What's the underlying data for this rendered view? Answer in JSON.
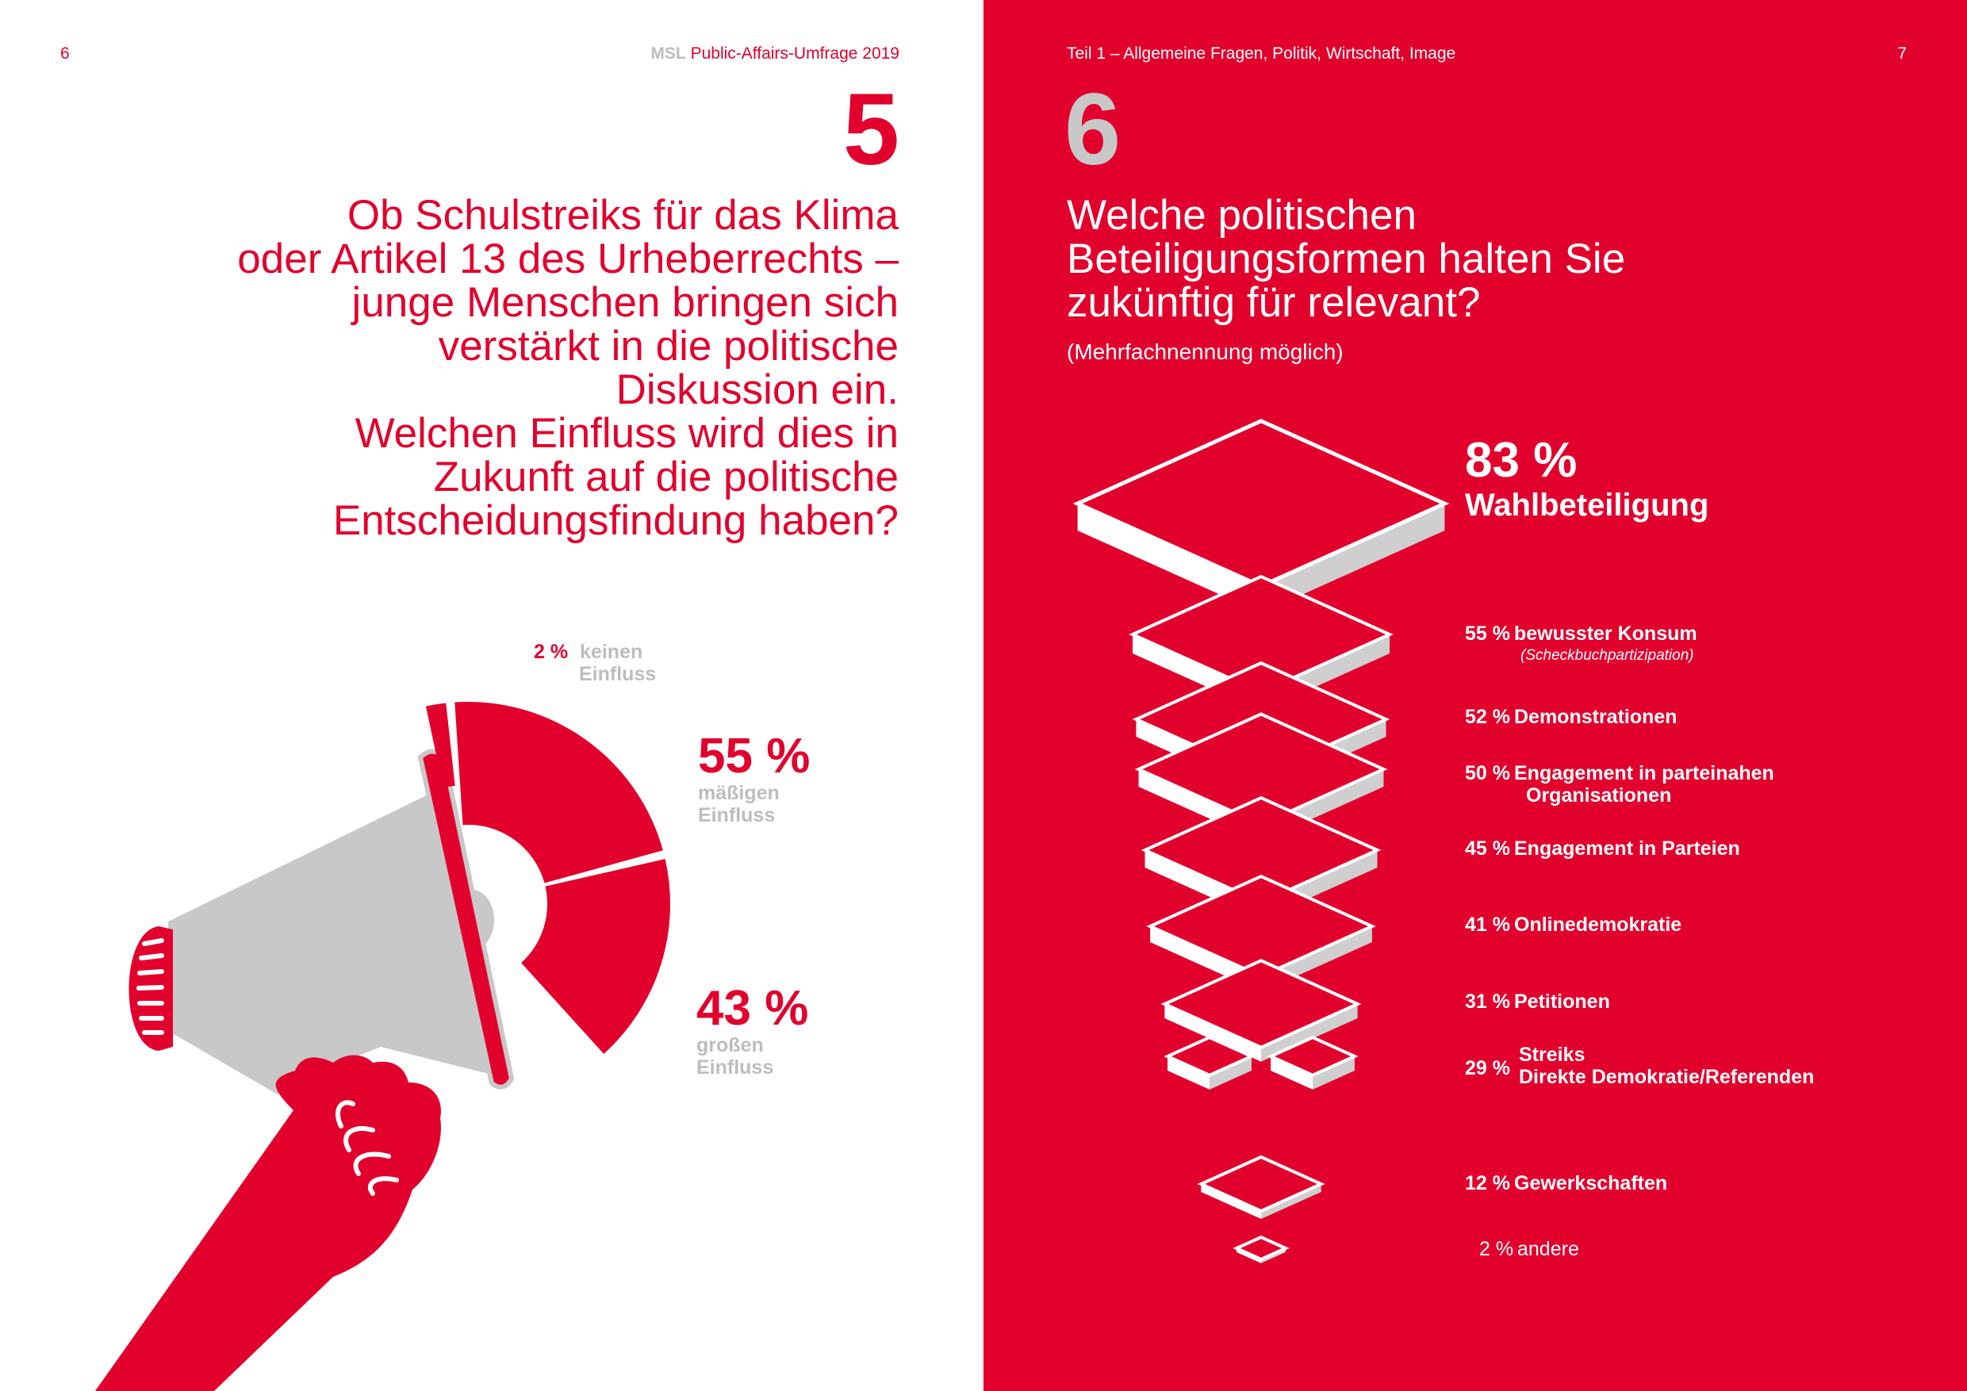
{
  "left_page": {
    "page_number": "6",
    "header_brand": "MSL",
    "header_title": "Public-Affairs-Umfrage 2019",
    "question_number": "5",
    "question_lines": [
      "Ob Schulstreiks für das Klima",
      "oder Artikel 13 des Urheberrechts –",
      "junge Menschen bringen sich",
      "verstärkt in die politische",
      "Diskussion ein.",
      "Welchen Einfluss wird dies in",
      "Zukunft auf die politische",
      "Entscheidungsfindung haben?"
    ]
  },
  "right_page": {
    "page_number": "7",
    "header_title": "Teil 1 – Allgemeine Fragen, Politik, Wirtschaft, Image",
    "question_number": "6",
    "question_lines": [
      "Welche politischen",
      "Beteiligungsformen halten Sie",
      "zukünftig für relevant?"
    ],
    "note": "(Mehrfachnennung möglich)"
  },
  "chart_data": [
    {
      "type": "pie",
      "values": [
        2,
        55,
        43
      ],
      "percent_labels": [
        "2 %",
        "55 %",
        "43 %"
      ],
      "labels": [
        [
          "keinen",
          "Einfluss"
        ],
        [
          "mäßigen",
          "Einfluss"
        ],
        [
          "großen",
          "Einfluss"
        ]
      ],
      "colors": {
        "accent": "#e2002d",
        "muted": "#bdbdbd"
      }
    },
    {
      "type": "bar",
      "values": [
        83,
        55,
        52,
        50,
        45,
        41,
        31,
        29,
        12,
        2
      ],
      "percent_labels": [
        "83 %",
        "55 %",
        "52 %",
        "50 %",
        "45 %",
        "41 %",
        "31 %",
        "29 %",
        "12 %",
        "2 %"
      ],
      "categories": [
        "Wahlbeteiligung",
        "bewusster Konsum",
        "Demonstrationen",
        "Engagement in parteinahen Organisationen",
        "Engagement in Parteien",
        "Onlinedemokratie",
        "Petitionen",
        "Streiks / Direkte Demokratie/Referenden",
        "Gewerkschaften",
        "andere"
      ],
      "label_lines": [
        [
          "Wahlbeteiligung"
        ],
        [
          "bewusster Konsum"
        ],
        [
          "Demonstrationen"
        ],
        [
          "Engagement in parteinahen",
          "Organisationen"
        ],
        [
          "Engagement in Parteien"
        ],
        [
          "Onlinedemokratie"
        ],
        [
          "Petitionen"
        ],
        [
          "Streiks",
          "Direkte Demokratie/Referenden"
        ],
        [
          "Gewerkschaften"
        ],
        [
          "andere"
        ]
      ],
      "sublabel": "(Scheckbuchpartizipation)",
      "colors": {
        "background": "#e2002d",
        "tile": "#ffffff",
        "tile_side": "#cfcfcf"
      }
    }
  ]
}
